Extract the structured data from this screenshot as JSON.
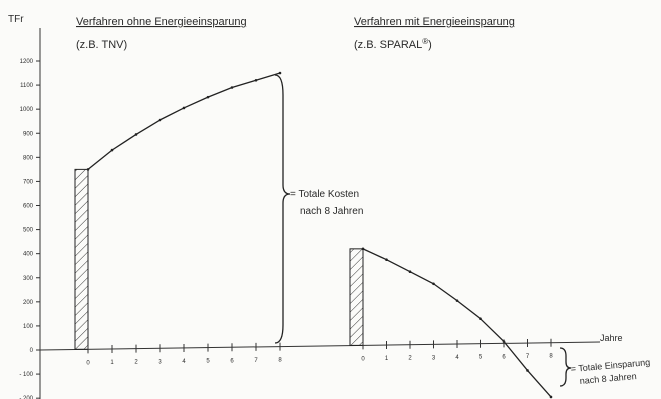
{
  "chart_data": {
    "type": "line",
    "y_unit": "TFr",
    "x_label": "Jahre",
    "yticks": [
      1200,
      1100,
      1000,
      900,
      800,
      700,
      600,
      500,
      400,
      300,
      200,
      100,
      0,
      -100,
      -200
    ],
    "ytick_labels": [
      "1200",
      "1100",
      "1000",
      "900",
      "800",
      "700",
      "600",
      "500",
      "400",
      "300",
      "200",
      "100",
      "0",
      "- 100",
      "- 200"
    ],
    "ylim": [
      -210,
      1250
    ],
    "x_ticks": [
      "0",
      "1",
      "2",
      "3",
      "4",
      "5",
      "6",
      "7",
      "8"
    ],
    "panels": [
      {
        "title": "Verfahren ohne Energieeinsparung",
        "subtitle": "(z.B. TNV)",
        "initial_investment": 750,
        "x": [
          0,
          1,
          2,
          3,
          4,
          5,
          6,
          7,
          8
        ],
        "y": [
          750,
          830,
          895,
          955,
          1005,
          1050,
          1090,
          1120,
          1150
        ],
        "annotation": [
          "= Totale Kosten",
          "nach 8 Jahren"
        ]
      },
      {
        "title": "Verfahren mit Energieeinsparung",
        "subtitle_main": "(z.B. SPARAL",
        "subtitle_sup": "®",
        "subtitle_end": ")",
        "initial_investment": 420,
        "x": [
          0,
          1,
          2,
          3,
          4,
          5,
          6,
          7,
          8
        ],
        "y": [
          420,
          375,
          325,
          275,
          205,
          130,
          35,
          -85,
          -195
        ],
        "annotation": [
          "= Totale Einsparung",
          "nach 8 Jahren"
        ]
      }
    ]
  }
}
